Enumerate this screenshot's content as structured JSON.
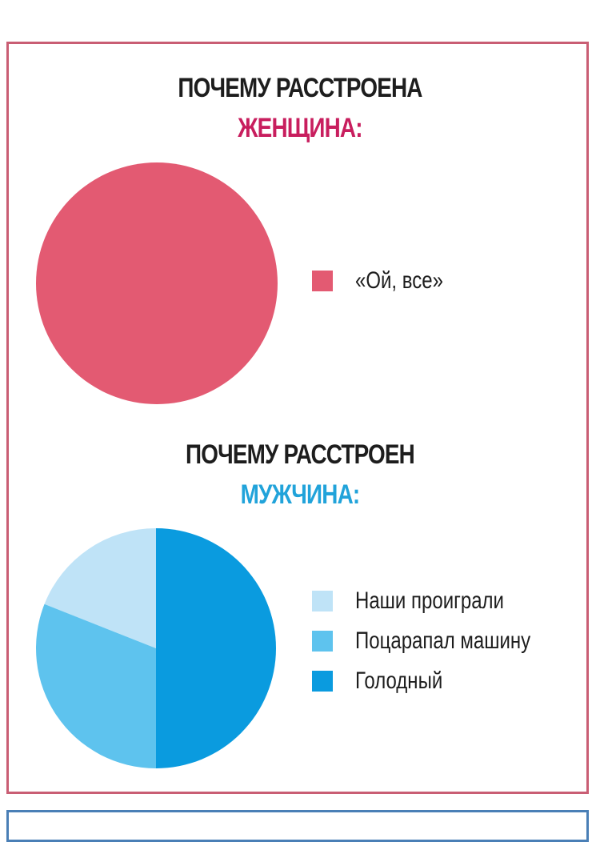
{
  "chart_data": [
    {
      "type": "pie",
      "title_line1": "ПОЧЕМУ РАССТРОЕНА",
      "title_line2": "ЖЕНЩИНА:",
      "categories": [
        "«Ой, все»"
      ],
      "values": [
        100
      ],
      "colors": [
        "#e35a72"
      ]
    },
    {
      "type": "pie",
      "title_line1": "ПОЧЕМУ РАССТРОЕН",
      "title_line2": "МУЖЧИНА:",
      "categories": [
        "Наши проиграли",
        "Поцарапал машину",
        "Голодный"
      ],
      "values": [
        19,
        31,
        50
      ],
      "colors": [
        "#bfe3f7",
        "#5ec3ee",
        "#0a9bdf"
      ]
    }
  ]
}
